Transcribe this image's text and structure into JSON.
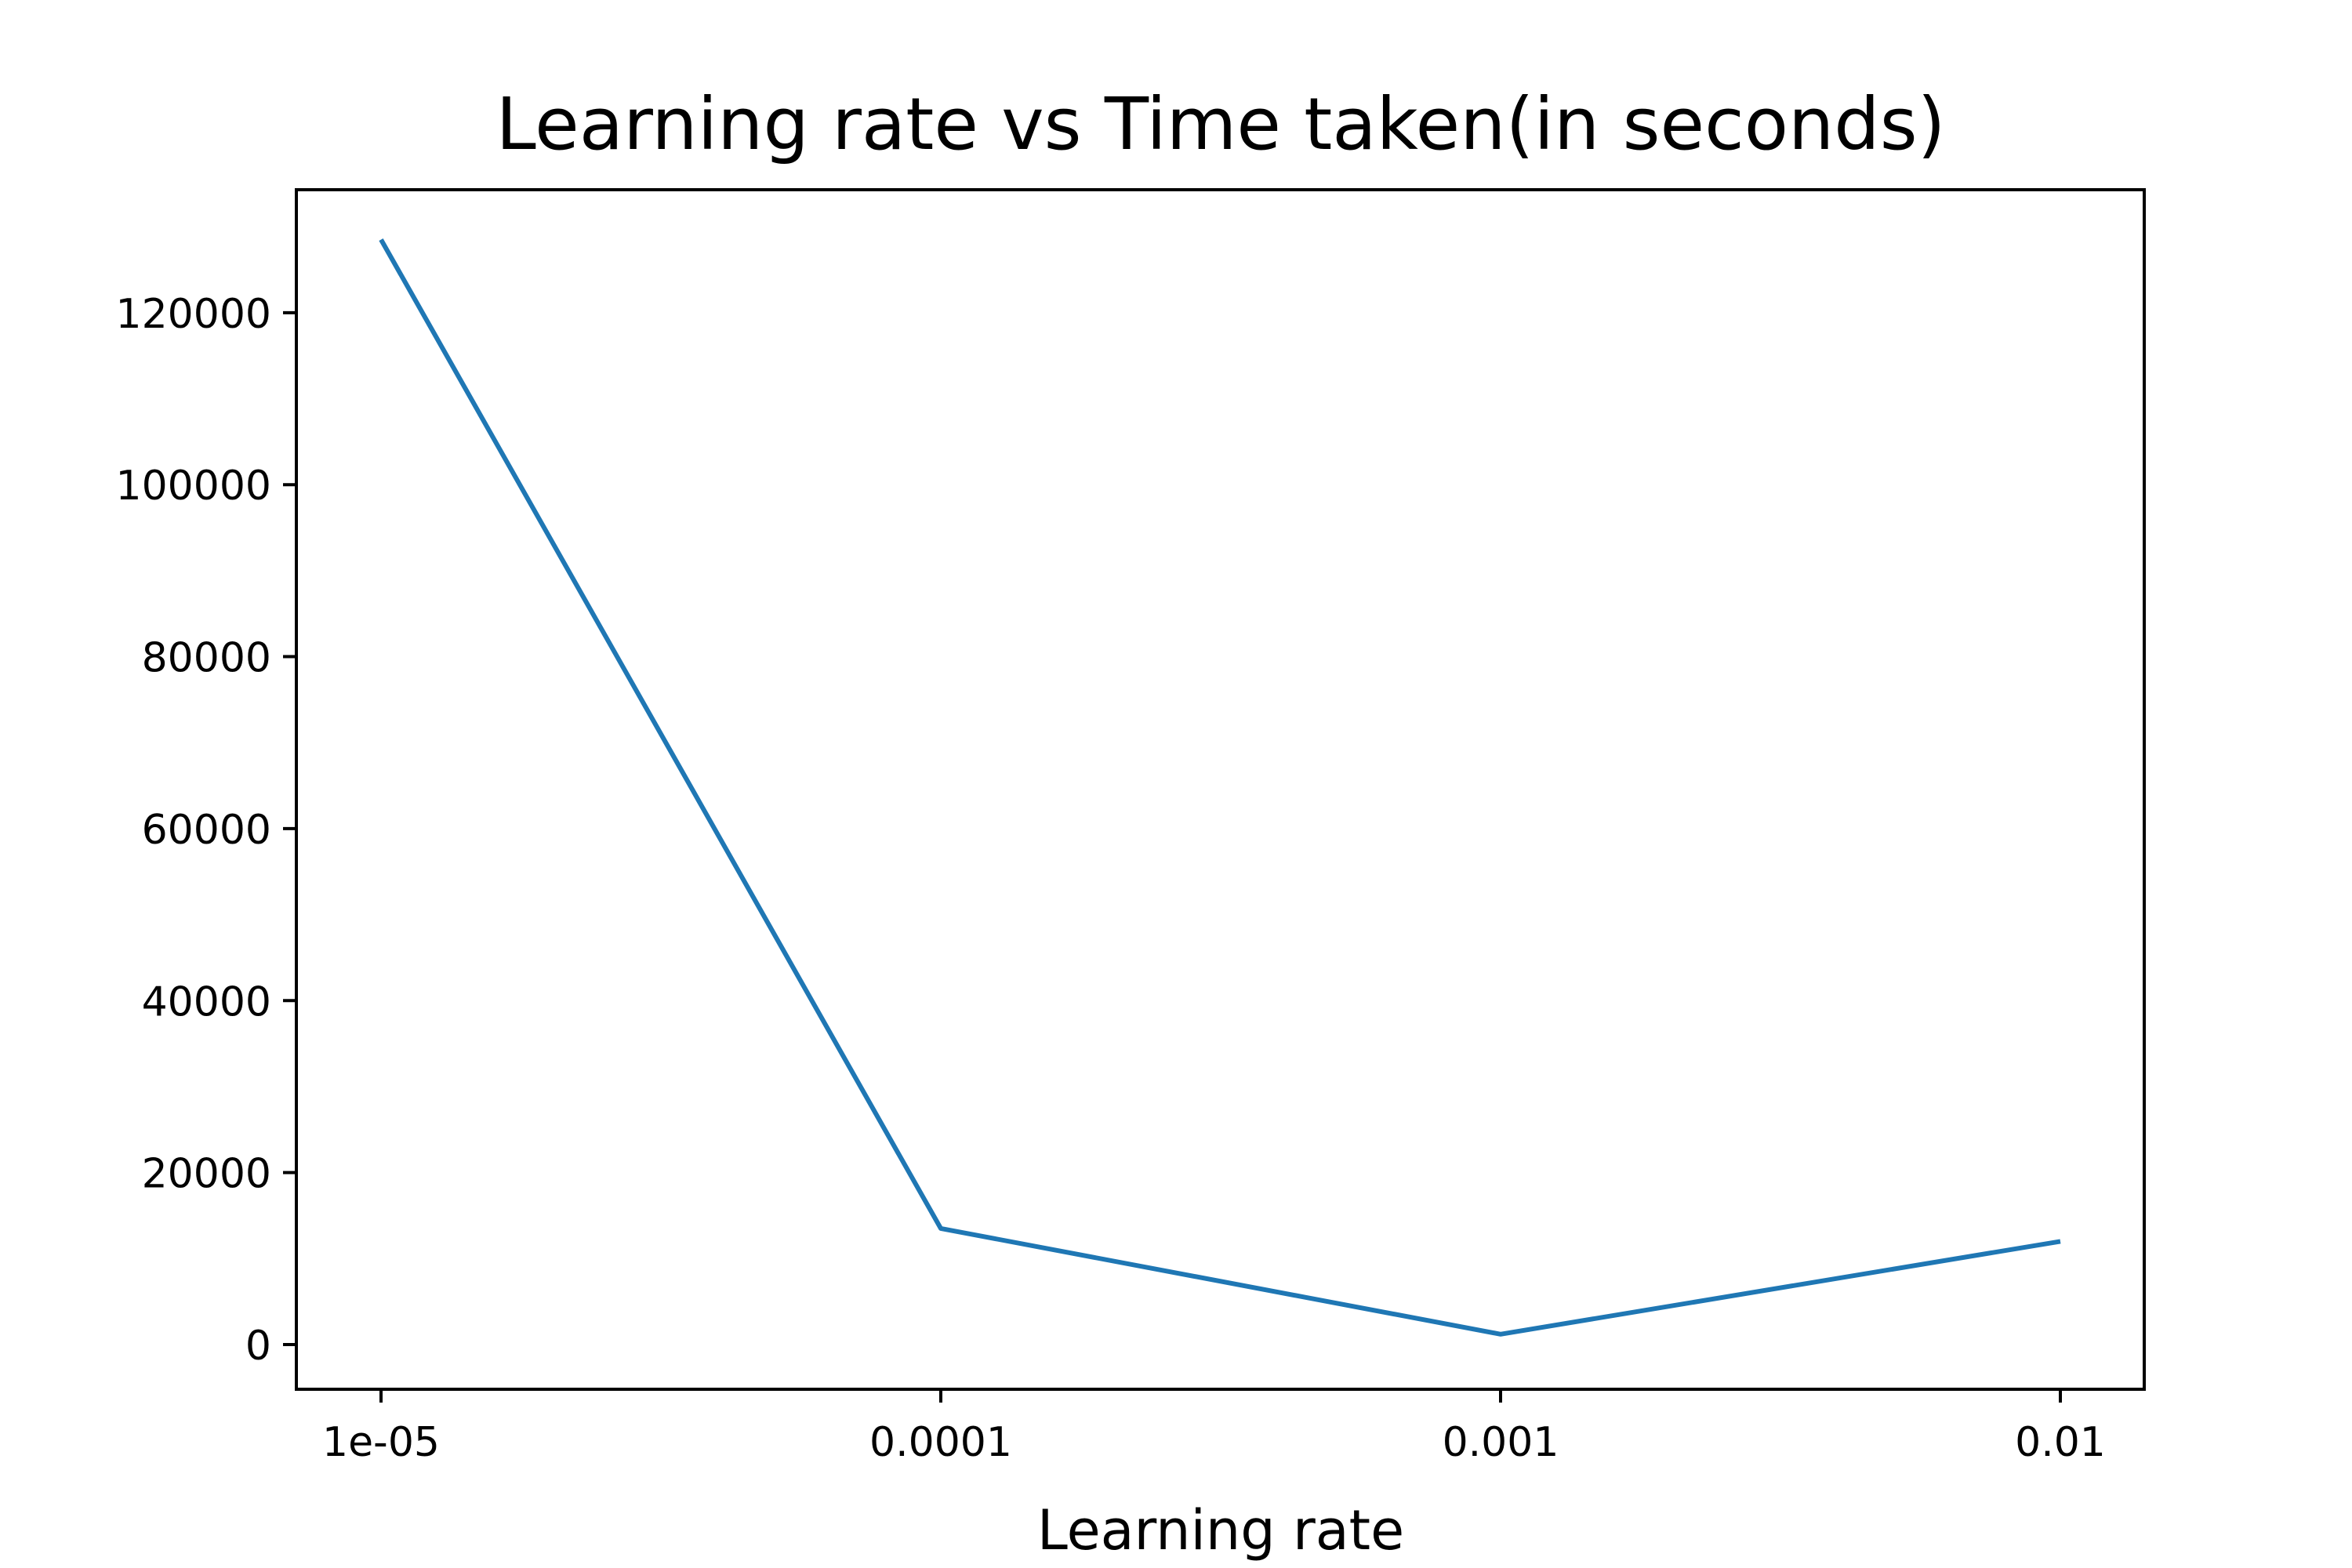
{
  "chart_data": {
    "type": "line",
    "title": "Learning rate vs Time taken(in seconds)",
    "xlabel": "Learning rate",
    "ylabel": "",
    "x": [
      "1e-05",
      "0.0001",
      "0.001",
      "0.01"
    ],
    "series": [
      {
        "values": [
          128500,
          13500,
          1200,
          12000
        ],
        "color": "#1f77b4"
      }
    ],
    "yticks": [
      0,
      20000,
      40000,
      60000,
      80000,
      100000,
      120000
    ],
    "ytick_labels": [
      "0",
      "20000",
      "40000",
      "60000",
      "80000",
      "100000",
      "120000"
    ],
    "ylim": [
      -5200,
      134300
    ],
    "grid": false,
    "legend": "none"
  }
}
